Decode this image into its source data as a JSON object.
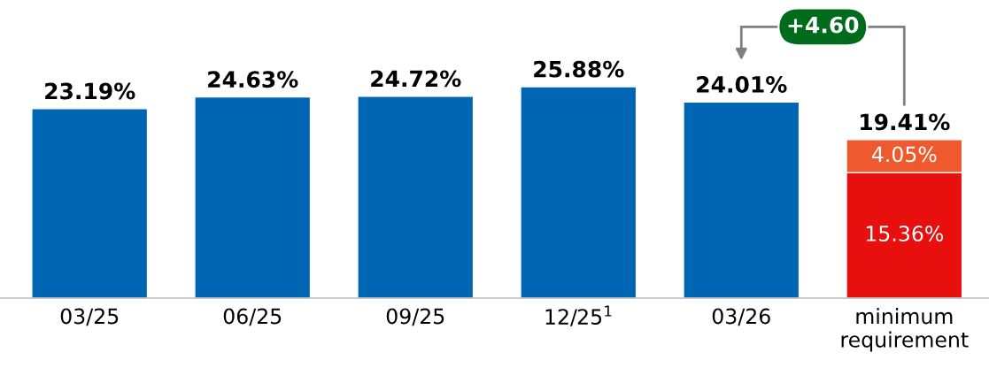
{
  "chart_data": {
    "type": "bar",
    "stacked": true,
    "data_labels": true,
    "categories": [
      "03/25",
      "06/25",
      "09/25",
      "12/25$^{1}$",
      "03/26",
      "minimum\nrequirement"
    ],
    "series": [
      {
        "color": "#0066b3",
        "values": [
          23.19,
          24.63,
          24.72,
          25.88,
          24.01,
          null
        ],
        "value_labels": [
          "23.19%",
          "24.63%",
          "24.72%",
          "25.88%",
          "24.01%",
          null
        ]
      },
      {
        "color": "#e8100f",
        "values": [
          null,
          null,
          null,
          null,
          null,
          15.36
        ],
        "value_labels": [
          null,
          null,
          null,
          null,
          null,
          "15.36%"
        ]
      },
      {
        "color": "#ee5a2e",
        "values": [
          null,
          null,
          null,
          null,
          null,
          4.05
        ],
        "value_labels": [
          null,
          null,
          null,
          null,
          null,
          "4.05%"
        ]
      }
    ],
    "totals": [
      null,
      null,
      null,
      null,
      null,
      "19.41%"
    ],
    "annotations": [
      "+4.60"
    ],
    "grid": false
  }
}
